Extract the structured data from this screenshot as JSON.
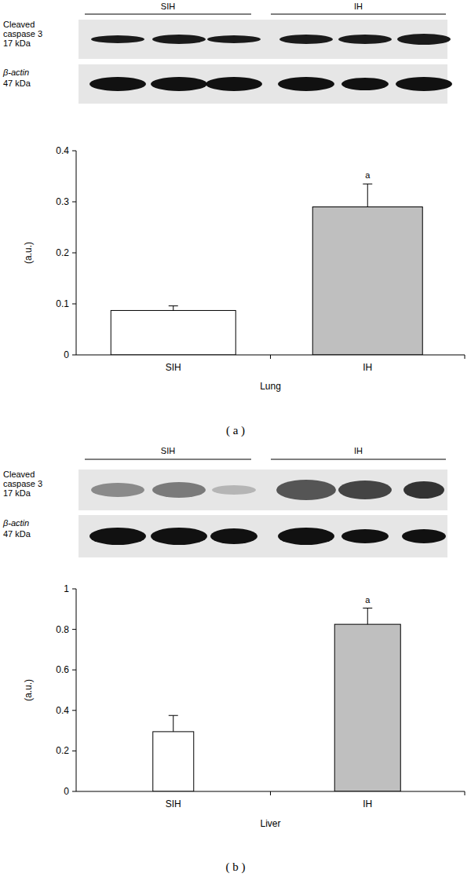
{
  "chart_data": [
    {
      "type": "bar",
      "panel": "( a )",
      "x_label": "Lung",
      "y_label": "(a.u.)",
      "categories": [
        "SIH",
        "IH"
      ],
      "values": [
        0.087,
        0.29
      ],
      "errors": [
        0.009,
        0.045
      ],
      "significance": [
        null,
        "a"
      ],
      "colors": [
        "#ffffff",
        "#bfbfbf"
      ],
      "ylim": [
        0,
        0.4
      ],
      "yticks": [
        0,
        0.1,
        0.2,
        0.3,
        0.4
      ],
      "grid": false,
      "blot": {
        "groups": [
          "SIH",
          "IH"
        ],
        "rows": [
          {
            "label": "Cleaved caspase 3",
            "size": "17 kDa"
          },
          {
            "label": "β-actin",
            "size": "47 kDa"
          }
        ]
      }
    },
    {
      "type": "bar",
      "panel": "( b )",
      "x_label": "Liver",
      "y_label": "(a.u.)",
      "categories": [
        "SIH",
        "IH"
      ],
      "values": [
        0.295,
        0.825
      ],
      "errors": [
        0.08,
        0.08
      ],
      "significance": [
        null,
        "a"
      ],
      "colors": [
        "#ffffff",
        "#bfbfbf"
      ],
      "ylim": [
        0,
        1
      ],
      "yticks": [
        0,
        0.2,
        0.4,
        0.6,
        0.8,
        1
      ],
      "grid": false,
      "blot": {
        "groups": [
          "SIH",
          "IH"
        ],
        "rows": [
          {
            "label": "Cleaved caspase 3",
            "size": "17 kDa"
          },
          {
            "label": "β-actin",
            "size": "47 kDa"
          }
        ]
      }
    }
  ]
}
